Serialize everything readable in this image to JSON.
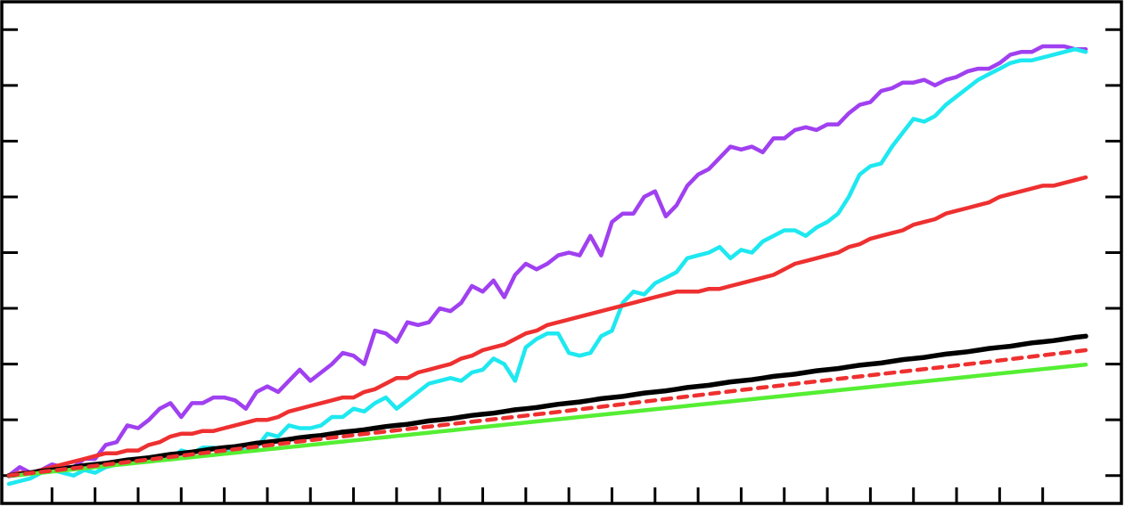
{
  "chart_data": {
    "type": "line",
    "title": "",
    "xlabel": "",
    "ylabel": "",
    "xlim": [
      0,
      100
    ],
    "ylim": [
      -0.5,
      8.5
    ],
    "grid": false,
    "legend": "none",
    "x_ticks": [
      4,
      8,
      12,
      16,
      20,
      24,
      28,
      32,
      36,
      40,
      44,
      48,
      52,
      56,
      60,
      64,
      68,
      72,
      76,
      80,
      84,
      88,
      92,
      96
    ],
    "y_ticks": [
      0,
      1,
      2,
      3,
      4,
      5,
      6,
      7,
      8
    ],
    "series": [
      {
        "key": "purple",
        "color": "#a040f0",
        "dash": false,
        "x": [
          0,
          1,
          2,
          3,
          4,
          5,
          6,
          7,
          8,
          9,
          10,
          11,
          12,
          13,
          14,
          15,
          16,
          17,
          18,
          19,
          20,
          21,
          22,
          23,
          24,
          25,
          26,
          27,
          28,
          29,
          30,
          31,
          32,
          33,
          34,
          35,
          36,
          37,
          38,
          39,
          40,
          41,
          42,
          43,
          44,
          45,
          46,
          47,
          48,
          49,
          50,
          51,
          52,
          53,
          54,
          55,
          56,
          57,
          58,
          59,
          60,
          61,
          62,
          63,
          64,
          65,
          66,
          67,
          68,
          69,
          70,
          71,
          72,
          73,
          74,
          75,
          76,
          77,
          78,
          79,
          80,
          81,
          82,
          83,
          84,
          85,
          86,
          87,
          88,
          89,
          90,
          91,
          92,
          93,
          94,
          95,
          96,
          97,
          98,
          99,
          100
        ],
        "y": [
          0,
          0.15,
          0.05,
          0.1,
          0.2,
          0.15,
          0.15,
          0.3,
          0.3,
          0.55,
          0.6,
          0.9,
          0.85,
          1.0,
          1.2,
          1.3,
          1.05,
          1.3,
          1.3,
          1.4,
          1.4,
          1.35,
          1.2,
          1.5,
          1.6,
          1.5,
          1.7,
          1.9,
          1.7,
          1.85,
          2.0,
          2.2,
          2.15,
          2.0,
          2.6,
          2.55,
          2.4,
          2.75,
          2.7,
          2.75,
          3.0,
          2.95,
          3.1,
          3.4,
          3.3,
          3.5,
          3.2,
          3.6,
          3.8,
          3.7,
          3.8,
          3.95,
          4.0,
          3.95,
          4.3,
          3.95,
          4.55,
          4.7,
          4.7,
          5.0,
          5.1,
          4.65,
          4.85,
          5.2,
          5.4,
          5.5,
          5.7,
          5.9,
          5.85,
          5.9,
          5.8,
          6.05,
          6.05,
          6.2,
          6.25,
          6.2,
          6.3,
          6.3,
          6.5,
          6.65,
          6.7,
          6.9,
          6.95,
          7.05,
          7.05,
          7.1,
          7.0,
          7.1,
          7.15,
          7.25,
          7.3,
          7.3,
          7.4,
          7.55,
          7.6,
          7.6,
          7.7,
          7.7,
          7.7,
          7.65,
          7.65
        ]
      },
      {
        "key": "cyan",
        "color": "#1ee8f0",
        "dash": false,
        "x": [
          0,
          1,
          2,
          3,
          4,
          5,
          6,
          7,
          8,
          9,
          10,
          11,
          12,
          13,
          14,
          15,
          16,
          17,
          18,
          19,
          20,
          21,
          22,
          23,
          24,
          25,
          26,
          27,
          28,
          29,
          30,
          31,
          32,
          33,
          34,
          35,
          36,
          37,
          38,
          39,
          40,
          41,
          42,
          43,
          44,
          45,
          46,
          47,
          48,
          49,
          50,
          51,
          52,
          53,
          54,
          55,
          56,
          57,
          58,
          59,
          60,
          61,
          62,
          63,
          64,
          65,
          66,
          67,
          68,
          69,
          70,
          71,
          72,
          73,
          74,
          75,
          76,
          77,
          78,
          79,
          80,
          81,
          82,
          83,
          84,
          85,
          86,
          87,
          88,
          89,
          90,
          91,
          92,
          93,
          94,
          95,
          96,
          97,
          98,
          99,
          100
        ],
        "y": [
          -0.15,
          -0.1,
          -0.05,
          0.05,
          0.1,
          0.05,
          0.0,
          0.1,
          0.05,
          0.15,
          0.2,
          0.25,
          0.3,
          0.3,
          0.35,
          0.3,
          0.45,
          0.4,
          0.5,
          0.5,
          0.45,
          0.5,
          0.45,
          0.5,
          0.75,
          0.7,
          0.9,
          0.85,
          0.85,
          0.9,
          1.05,
          1.05,
          1.2,
          1.15,
          1.3,
          1.4,
          1.2,
          1.35,
          1.5,
          1.65,
          1.7,
          1.75,
          1.7,
          1.85,
          1.9,
          2.1,
          2.0,
          1.7,
          2.3,
          2.45,
          2.55,
          2.55,
          2.2,
          2.15,
          2.2,
          2.5,
          2.6,
          3.1,
          3.3,
          3.25,
          3.45,
          3.55,
          3.65,
          3.9,
          3.95,
          4.0,
          4.1,
          3.9,
          4.05,
          4.0,
          4.2,
          4.3,
          4.4,
          4.4,
          4.3,
          4.45,
          4.55,
          4.7,
          5.0,
          5.4,
          5.55,
          5.6,
          5.9,
          6.15,
          6.4,
          6.35,
          6.45,
          6.65,
          6.8,
          6.95,
          7.1,
          7.2,
          7.3,
          7.4,
          7.45,
          7.45,
          7.5,
          7.55,
          7.6,
          7.65,
          7.6
        ]
      },
      {
        "key": "red",
        "color": "#ee3030",
        "dash": false,
        "x": [
          0,
          1,
          2,
          3,
          4,
          5,
          6,
          7,
          8,
          9,
          10,
          11,
          12,
          13,
          14,
          15,
          16,
          17,
          18,
          19,
          20,
          21,
          22,
          23,
          24,
          25,
          26,
          27,
          28,
          29,
          30,
          31,
          32,
          33,
          34,
          35,
          36,
          37,
          38,
          39,
          40,
          41,
          42,
          43,
          44,
          45,
          46,
          47,
          48,
          49,
          50,
          51,
          52,
          53,
          54,
          55,
          56,
          57,
          58,
          59,
          60,
          61,
          62,
          63,
          64,
          65,
          66,
          67,
          68,
          69,
          70,
          71,
          72,
          73,
          74,
          75,
          76,
          77,
          78,
          79,
          80,
          81,
          82,
          83,
          84,
          85,
          86,
          87,
          88,
          89,
          90,
          91,
          92,
          93,
          94,
          95,
          96,
          97,
          98,
          99,
          100
        ],
        "y": [
          0,
          0.05,
          0.05,
          0.1,
          0.15,
          0.2,
          0.25,
          0.3,
          0.35,
          0.4,
          0.4,
          0.45,
          0.45,
          0.55,
          0.6,
          0.7,
          0.75,
          0.75,
          0.8,
          0.8,
          0.85,
          0.9,
          0.95,
          1.0,
          1.0,
          1.05,
          1.15,
          1.2,
          1.25,
          1.3,
          1.35,
          1.4,
          1.4,
          1.5,
          1.55,
          1.65,
          1.75,
          1.75,
          1.85,
          1.9,
          1.95,
          2.0,
          2.1,
          2.15,
          2.25,
          2.3,
          2.35,
          2.45,
          2.55,
          2.6,
          2.7,
          2.75,
          2.8,
          2.85,
          2.9,
          2.95,
          3.0,
          3.05,
          3.1,
          3.15,
          3.2,
          3.25,
          3.3,
          3.3,
          3.3,
          3.35,
          3.35,
          3.4,
          3.45,
          3.5,
          3.55,
          3.6,
          3.7,
          3.8,
          3.85,
          3.9,
          3.95,
          4.0,
          4.1,
          4.15,
          4.25,
          4.3,
          4.35,
          4.4,
          4.5,
          4.55,
          4.6,
          4.7,
          4.75,
          4.8,
          4.85,
          4.9,
          5.0,
          5.05,
          5.1,
          5.15,
          5.2,
          5.2,
          5.25,
          5.3,
          5.35
        ]
      },
      {
        "key": "black",
        "color": "#000000",
        "dash": false,
        "x": [
          0,
          1,
          2,
          3,
          4,
          5,
          6,
          7,
          8,
          9,
          10,
          11,
          12,
          13,
          14,
          15,
          16,
          17,
          18,
          19,
          20,
          21,
          22,
          23,
          24,
          25,
          26,
          27,
          28,
          29,
          30,
          31,
          32,
          33,
          34,
          35,
          36,
          37,
          38,
          39,
          40,
          41,
          42,
          43,
          44,
          45,
          46,
          47,
          48,
          49,
          50,
          51,
          52,
          53,
          54,
          55,
          56,
          57,
          58,
          59,
          60,
          61,
          62,
          63,
          64,
          65,
          66,
          67,
          68,
          69,
          70,
          71,
          72,
          73,
          74,
          75,
          76,
          77,
          78,
          79,
          80,
          81,
          82,
          83,
          84,
          85,
          86,
          87,
          88,
          89,
          90,
          91,
          92,
          93,
          94,
          95,
          96,
          97,
          98,
          99,
          100
        ],
        "y": [
          0,
          0.02,
          0.05,
          0.08,
          0.1,
          0.12,
          0.15,
          0.18,
          0.2,
          0.22,
          0.25,
          0.28,
          0.3,
          0.32,
          0.35,
          0.38,
          0.4,
          0.42,
          0.45,
          0.48,
          0.5,
          0.52,
          0.55,
          0.58,
          0.6,
          0.62,
          0.65,
          0.68,
          0.7,
          0.72,
          0.75,
          0.78,
          0.8,
          0.82,
          0.85,
          0.88,
          0.9,
          0.92,
          0.95,
          0.98,
          1.0,
          1.02,
          1.05,
          1.08,
          1.1,
          1.12,
          1.15,
          1.18,
          1.2,
          1.22,
          1.25,
          1.28,
          1.3,
          1.32,
          1.35,
          1.38,
          1.4,
          1.42,
          1.45,
          1.48,
          1.5,
          1.52,
          1.55,
          1.58,
          1.6,
          1.62,
          1.65,
          1.68,
          1.7,
          1.72,
          1.75,
          1.78,
          1.8,
          1.82,
          1.85,
          1.88,
          1.9,
          1.92,
          1.95,
          1.98,
          2.0,
          2.02,
          2.05,
          2.08,
          2.1,
          2.12,
          2.15,
          2.18,
          2.2,
          2.22,
          2.25,
          2.28,
          2.3,
          2.32,
          2.35,
          2.38,
          2.4,
          2.42,
          2.45,
          2.48,
          2.5
        ]
      },
      {
        "key": "green",
        "color": "#55ee33",
        "dash": false,
        "x": [
          0,
          1,
          2,
          3,
          4,
          5,
          6,
          7,
          8,
          9,
          10,
          11,
          12,
          13,
          14,
          15,
          16,
          17,
          18,
          19,
          20,
          21,
          22,
          23,
          24,
          25,
          26,
          27,
          28,
          29,
          30,
          31,
          32,
          33,
          34,
          35,
          36,
          37,
          38,
          39,
          40,
          41,
          42,
          43,
          44,
          45,
          46,
          47,
          48,
          49,
          50,
          51,
          52,
          53,
          54,
          55,
          56,
          57,
          58,
          59,
          60,
          61,
          62,
          63,
          64,
          65,
          66,
          67,
          68,
          69,
          70,
          71,
          72,
          73,
          74,
          75,
          76,
          77,
          78,
          79,
          80,
          81,
          82,
          83,
          84,
          85,
          86,
          87,
          88,
          89,
          90,
          91,
          92,
          93,
          94,
          95,
          96,
          97,
          98,
          99,
          100
        ],
        "y": [
          0,
          0.01,
          0.03,
          0.05,
          0.07,
          0.09,
          0.11,
          0.13,
          0.15,
          0.17,
          0.19,
          0.21,
          0.23,
          0.25,
          0.27,
          0.29,
          0.31,
          0.33,
          0.35,
          0.37,
          0.39,
          0.41,
          0.43,
          0.45,
          0.47,
          0.49,
          0.51,
          0.53,
          0.55,
          0.57,
          0.59,
          0.61,
          0.63,
          0.65,
          0.67,
          0.69,
          0.71,
          0.73,
          0.75,
          0.77,
          0.79,
          0.81,
          0.83,
          0.85,
          0.87,
          0.89,
          0.91,
          0.93,
          0.95,
          0.97,
          0.99,
          1.01,
          1.03,
          1.05,
          1.07,
          1.09,
          1.11,
          1.13,
          1.15,
          1.17,
          1.19,
          1.21,
          1.23,
          1.25,
          1.27,
          1.29,
          1.31,
          1.33,
          1.35,
          1.37,
          1.39,
          1.41,
          1.43,
          1.45,
          1.47,
          1.49,
          1.51,
          1.53,
          1.55,
          1.57,
          1.59,
          1.61,
          1.63,
          1.65,
          1.67,
          1.69,
          1.71,
          1.73,
          1.75,
          1.77,
          1.79,
          1.81,
          1.83,
          1.85,
          1.87,
          1.89,
          1.91,
          1.93,
          1.95,
          1.97,
          1.99
        ]
      },
      {
        "key": "red-dashed",
        "color": "#ee3030",
        "dash": true,
        "x": [
          0,
          10,
          20,
          30,
          40,
          50,
          60,
          70,
          80,
          90,
          100
        ],
        "y": [
          0,
          0.22,
          0.45,
          0.68,
          0.9,
          1.12,
          1.35,
          1.58,
          1.8,
          2.02,
          2.25
        ]
      }
    ]
  }
}
